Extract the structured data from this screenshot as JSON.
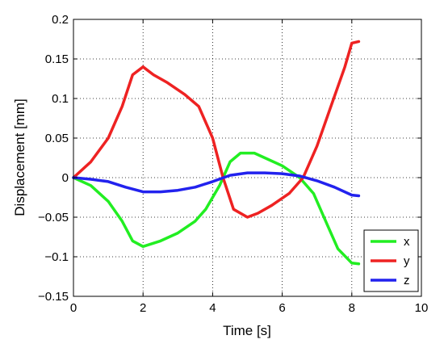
{
  "chart_data": {
    "type": "line",
    "title": "",
    "xlabel": "Time [s]",
    "ylabel": "Displacement [mm]",
    "xlim": [
      0,
      10
    ],
    "ylim": [
      -0.15,
      0.2
    ],
    "grid": true,
    "legend_position": "bottom-right",
    "x_ticks": [
      "0",
      "2",
      "4",
      "6",
      "8",
      "10"
    ],
    "y_ticks": [
      "−0.15",
      "−0.1",
      "−0.05",
      "0",
      "0.05",
      "0.1",
      "0.15",
      "0.2"
    ],
    "series": [
      {
        "name": "x",
        "color": "#22ee22",
        "x": [
          0,
          0.5,
          1.0,
          1.4,
          1.7,
          2.0,
          2.5,
          3.0,
          3.5,
          3.8,
          4.2,
          4.5,
          4.8,
          5.2,
          5.6,
          6.0,
          6.5,
          6.9,
          7.3,
          7.6,
          8.0,
          8.2
        ],
        "y": [
          0,
          -0.01,
          -0.03,
          -0.055,
          -0.08,
          -0.087,
          -0.08,
          -0.07,
          -0.055,
          -0.04,
          -0.01,
          0.02,
          0.031,
          0.031,
          0.023,
          0.015,
          0.0,
          -0.02,
          -0.06,
          -0.09,
          -0.108,
          -0.109
        ]
      },
      {
        "name": "y",
        "color": "#ee2222",
        "x": [
          0,
          0.5,
          1.0,
          1.4,
          1.7,
          2.0,
          2.3,
          2.7,
          3.2,
          3.6,
          4.0,
          4.3,
          4.6,
          5.0,
          5.3,
          5.7,
          6.2,
          6.6,
          7.0,
          7.4,
          7.8,
          8.0,
          8.2
        ],
        "y": [
          0,
          0.02,
          0.05,
          0.09,
          0.13,
          0.14,
          0.13,
          0.12,
          0.105,
          0.09,
          0.05,
          0.0,
          -0.04,
          -0.05,
          -0.045,
          -0.035,
          -0.02,
          0.0,
          0.04,
          0.09,
          0.14,
          0.17,
          0.172
        ]
      },
      {
        "name": "z",
        "color": "#2222ee",
        "x": [
          0,
          0.5,
          1.0,
          1.5,
          2.0,
          2.5,
          3.0,
          3.5,
          4.0,
          4.5,
          5.0,
          5.5,
          6.0,
          6.5,
          7.0,
          7.5,
          8.0,
          8.2
        ],
        "y": [
          0,
          -0.002,
          -0.005,
          -0.012,
          -0.018,
          -0.018,
          -0.016,
          -0.012,
          -0.005,
          0.003,
          0.006,
          0.006,
          0.005,
          0.002,
          -0.004,
          -0.012,
          -0.022,
          -0.023
        ]
      }
    ]
  }
}
